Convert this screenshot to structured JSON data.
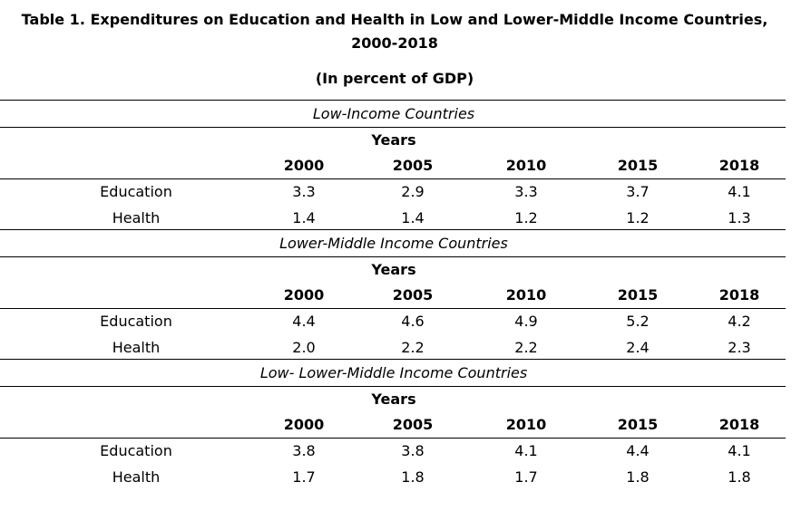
{
  "header": {
    "title_line1": "Table 1.  Expenditures on Education and Health in Low and Lower-Middle Income Countries,",
    "title_line2": "2000-2018",
    "subtitle": "(In percent of GDP)"
  },
  "table": {
    "years_label": "Years",
    "sections": [
      {
        "title": "Low-Income Countries",
        "years": [
          "2000",
          "2005",
          "2010",
          "2015",
          "2018"
        ],
        "rows": [
          {
            "label": "Education",
            "values": [
              "3.3",
              "2.9",
              "3.3",
              "3.7",
              "4.1"
            ]
          },
          {
            "label": "Health",
            "values": [
              "1.4",
              "1.4",
              "1.2",
              "1.2",
              "1.3"
            ]
          }
        ]
      },
      {
        "title": "Lower-Middle Income Countries",
        "years": [
          "2000",
          "2005",
          "2010",
          "2015",
          "2018"
        ],
        "rows": [
          {
            "label": "Education",
            "values": [
              "4.4",
              "4.6",
              "4.9",
              "5.2",
              "4.2"
            ]
          },
          {
            "label": "Health",
            "values": [
              "2.0",
              "2.2",
              "2.2",
              "2.4",
              "2.3"
            ]
          }
        ]
      },
      {
        "title": "Low- Lower-Middle Income Countries",
        "years": [
          "2000",
          "2005",
          "2010",
          "2015",
          "2018"
        ],
        "rows": [
          {
            "label": "Education",
            "values": [
              "3.8",
              "3.8",
              "4.1",
              "4.4",
              "4.1"
            ]
          },
          {
            "label": "Health",
            "values": [
              "1.7",
              "1.8",
              "1.7",
              "1.8",
              "1.8"
            ]
          }
        ]
      }
    ]
  }
}
